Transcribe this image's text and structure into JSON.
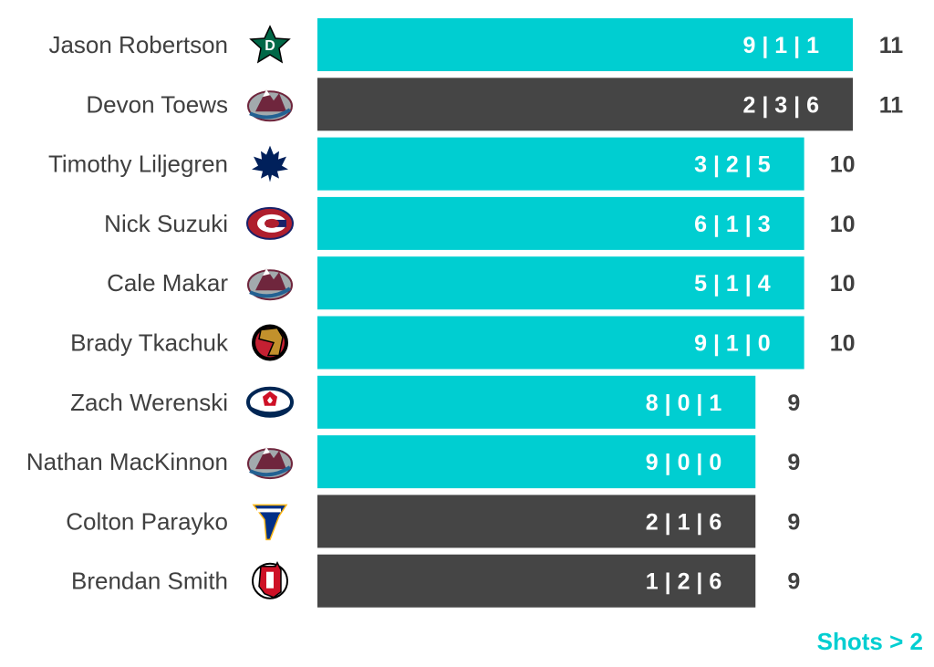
{
  "chart_data": {
    "type": "bar",
    "orientation": "horizontal",
    "categories": [
      "Jason Robertson",
      "Devon Toews",
      "Timothy Liljegren",
      "Nick Suzuki",
      "Cale Makar",
      "Brady Tkachuk",
      "Zach Werenski",
      "Nathan MacKinnon",
      "Colton Parayko",
      "Brendan Smith"
    ],
    "values": [
      11,
      11,
      10,
      10,
      10,
      10,
      9,
      9,
      9,
      9
    ],
    "bar_labels": [
      "9 | 1 | 1",
      "2 | 3 | 6",
      "3 | 2 | 5",
      "6 | 1 | 3",
      "5 | 1 | 4",
      "9 | 1 | 0",
      "8 | 0 | 1",
      "9 | 0 | 0",
      "2 | 1 | 6",
      "1 | 2 | 6"
    ],
    "highlighted": [
      true,
      false,
      true,
      true,
      true,
      true,
      true,
      true,
      false,
      false
    ],
    "team_icons": [
      "dallas-stars-logo",
      "colorado-avalanche-logo",
      "toronto-maple-leafs-logo",
      "montreal-canadiens-logo",
      "colorado-avalanche-logo",
      "ottawa-senators-logo",
      "columbus-blue-jackets-logo",
      "colorado-avalanche-logo",
      "st-louis-blues-logo",
      "new-jersey-devils-logo"
    ],
    "colors": {
      "highlight": "#00ced1",
      "default": "#454545",
      "label_text": "#404040",
      "bar_text": "#ffffff"
    },
    "xlim": [
      0,
      11
    ],
    "grid": false,
    "legend": false,
    "footnote": "Shots > 2"
  }
}
